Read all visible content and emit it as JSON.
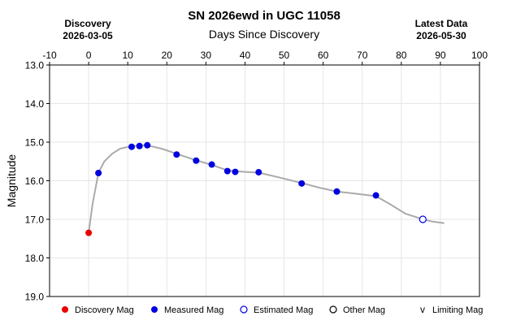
{
  "chart_data": {
    "type": "scatter",
    "title": "SN 2026ewd in UGC 11058",
    "xlabel": "Days Since Discovery",
    "ylabel": "Magnitude",
    "left_header": {
      "label": "Discovery",
      "date": "2026-03-05"
    },
    "right_header": {
      "label": "Latest Data",
      "date": "2026-05-30"
    },
    "xlim": [
      -10,
      100
    ],
    "ylim": [
      19.0,
      13.0
    ],
    "y_inverted": true,
    "x_ticks": [
      -10,
      0,
      10,
      20,
      30,
      40,
      50,
      60,
      70,
      80,
      90,
      100
    ],
    "y_ticks": [
      "13.0",
      "14.0",
      "15.0",
      "16.0",
      "17.0",
      "18.0",
      "19.0"
    ],
    "grid": true,
    "series": [
      {
        "name": "Discovery Mag",
        "color": "#e80000",
        "marker": "filled-circle",
        "points": [
          [
            0,
            17.35
          ]
        ]
      },
      {
        "name": "Measured Mag",
        "color": "#0000e0",
        "marker": "filled-circle",
        "points": [
          [
            2.5,
            15.8
          ],
          [
            11,
            15.12
          ],
          [
            13,
            15.1
          ],
          [
            15,
            15.08
          ],
          [
            22.5,
            15.32
          ],
          [
            27.5,
            15.48
          ],
          [
            31.5,
            15.58
          ],
          [
            35.5,
            15.75
          ],
          [
            37.5,
            15.77
          ],
          [
            43.5,
            15.78
          ],
          [
            54.5,
            16.07
          ],
          [
            63.5,
            16.28
          ],
          [
            73.5,
            16.38
          ]
        ]
      },
      {
        "name": "Estimated Mag",
        "color": "#0000e0",
        "marker": "open-circle",
        "points": [
          [
            85.5,
            17.0
          ]
        ]
      },
      {
        "name": "Other Mag",
        "color": "#000000",
        "marker": "open-circle",
        "points": []
      },
      {
        "name": "Limiting Mag",
        "color": "#000000",
        "marker": "v",
        "points": []
      }
    ],
    "trend_line": {
      "color": "#aaaaaa",
      "points": [
        [
          0,
          17.35
        ],
        [
          1,
          16.6
        ],
        [
          2.5,
          15.8
        ],
        [
          4,
          15.5
        ],
        [
          6,
          15.3
        ],
        [
          8,
          15.17
        ],
        [
          11,
          15.1
        ],
        [
          15,
          15.08
        ],
        [
          19,
          15.18
        ],
        [
          22.5,
          15.3
        ],
        [
          27.5,
          15.47
        ],
        [
          31.5,
          15.59
        ],
        [
          35.5,
          15.73
        ],
        [
          40,
          15.77
        ],
        [
          43.5,
          15.79
        ],
        [
          49,
          15.92
        ],
        [
          54.5,
          16.06
        ],
        [
          59,
          16.18
        ],
        [
          63.5,
          16.28
        ],
        [
          68,
          16.33
        ],
        [
          73.5,
          16.4
        ],
        [
          77,
          16.6
        ],
        [
          81,
          16.85
        ],
        [
          85.5,
          17.0
        ],
        [
          88,
          17.06
        ],
        [
          91,
          17.1
        ]
      ]
    },
    "legend": {
      "placement": "bottom",
      "items": [
        {
          "label": "Discovery Mag",
          "symbol": "filled-circle",
          "color": "#e80000"
        },
        {
          "label": "Measured Mag",
          "symbol": "filled-circle",
          "color": "#0000e0"
        },
        {
          "label": "Estimated Mag",
          "symbol": "open-circle",
          "color": "#0000e0"
        },
        {
          "label": "Other Mag",
          "symbol": "open-circle",
          "color": "#000000"
        },
        {
          "label": "Limiting Mag",
          "symbol": "v",
          "color": "#000000"
        }
      ]
    }
  }
}
